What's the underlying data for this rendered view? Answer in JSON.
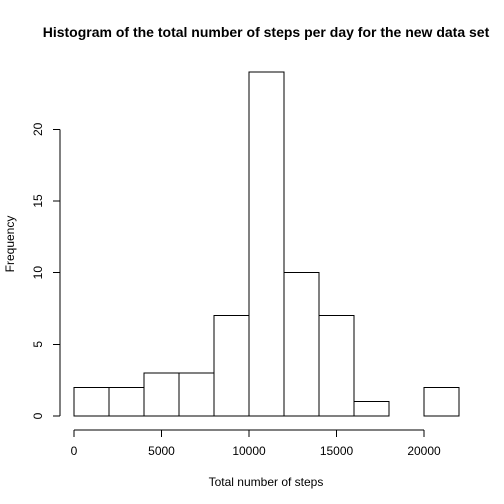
{
  "chart_data": {
    "type": "bar",
    "title": "Histogram of the total number of steps per day for the new data set",
    "xlabel": "Total number of steps",
    "ylabel": "Frequency",
    "bins": [
      {
        "from": 0,
        "to": 2000,
        "count": 2
      },
      {
        "from": 2000,
        "to": 4000,
        "count": 2
      },
      {
        "from": 4000,
        "to": 6000,
        "count": 3
      },
      {
        "from": 6000,
        "to": 8000,
        "count": 3
      },
      {
        "from": 8000,
        "to": 10000,
        "count": 7
      },
      {
        "from": 10000,
        "to": 12000,
        "count": 24
      },
      {
        "from": 12000,
        "to": 14000,
        "count": 10
      },
      {
        "from": 14000,
        "to": 16000,
        "count": 7
      },
      {
        "from": 16000,
        "to": 18000,
        "count": 1
      },
      {
        "from": 18000,
        "to": 20000,
        "count": 0
      },
      {
        "from": 20000,
        "to": 22000,
        "count": 2
      }
    ],
    "xlim": [
      0,
      22000
    ],
    "ylim": [
      0,
      24
    ],
    "x_ticks": [
      0,
      5000,
      10000,
      15000,
      20000
    ],
    "y_ticks": [
      0,
      5,
      10,
      15,
      20
    ],
    "grid": false,
    "legend": "none"
  }
}
